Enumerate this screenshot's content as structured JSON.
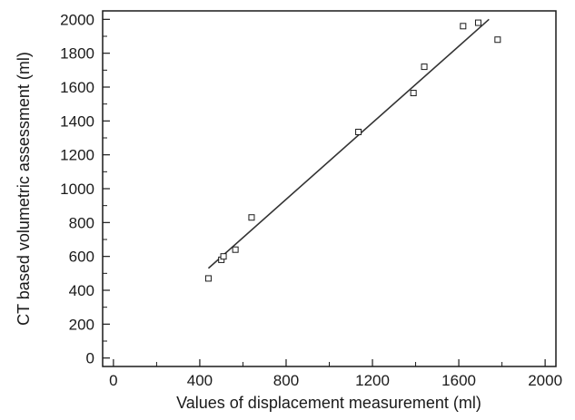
{
  "chart_data": {
    "type": "scatter",
    "title": "",
    "xlabel": "Values of displacement measurement (ml)",
    "ylabel": "CT based volumetric assessment (ml)",
    "xlim": [
      -50,
      2050
    ],
    "ylim": [
      -50,
      2050
    ],
    "x_ticks": [
      0,
      400,
      800,
      1200,
      1600,
      2000
    ],
    "y_ticks": [
      0,
      200,
      400,
      600,
      800,
      1000,
      1200,
      1400,
      1600,
      1800,
      2000
    ],
    "grid": false,
    "points": [
      {
        "x": 440,
        "y": 470
      },
      {
        "x": 500,
        "y": 580
      },
      {
        "x": 510,
        "y": 600
      },
      {
        "x": 565,
        "y": 640
      },
      {
        "x": 640,
        "y": 830
      },
      {
        "x": 1135,
        "y": 1335
      },
      {
        "x": 1390,
        "y": 1565
      },
      {
        "x": 1440,
        "y": 1720
      },
      {
        "x": 1620,
        "y": 1960
      },
      {
        "x": 1690,
        "y": 1980
      },
      {
        "x": 1780,
        "y": 1880
      }
    ],
    "fit_line": {
      "x": [
        440,
        1740
      ],
      "y": [
        530,
        2000
      ]
    },
    "colors": {
      "axis": "#1a1a1a",
      "marker": "#1a1a1a",
      "line": "#333333"
    }
  }
}
